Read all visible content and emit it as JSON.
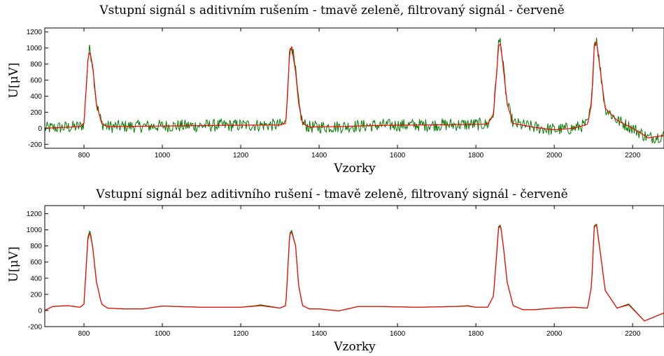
{
  "chart_data": [
    {
      "type": "line",
      "title": "Vstupní signál s aditivním rušením - tmavě zeleně, filtrovaný signál - červeně",
      "xlabel": "Vzorky",
      "ylabel": "U[μV]",
      "xlim": [
        700,
        2280
      ],
      "ylim": [
        -250,
        1250
      ],
      "xticks": [
        800,
        1000,
        1200,
        1400,
        1600,
        1800,
        2000,
        2200
      ],
      "yticks": [
        -200,
        0,
        200,
        400,
        600,
        800,
        1000,
        1200
      ],
      "grid": false,
      "series": [
        {
          "color": "#007a00",
          "noise_amplitude": 80,
          "x": [
            700,
            790,
            800,
            810,
            815,
            822,
            832,
            845,
            860,
            950,
            1050,
            1150,
            1250,
            1300,
            1315,
            1325,
            1330,
            1340,
            1348,
            1358,
            1375,
            1450,
            1550,
            1650,
            1750,
            1830,
            1845,
            1858,
            1863,
            1870,
            1880,
            1895,
            1950,
            2000,
            2050,
            2085,
            2095,
            2102,
            2108,
            2118,
            2130,
            2160,
            2200,
            2240,
            2280
          ],
          "y": [
            0,
            20,
            60,
            850,
            1000,
            800,
            300,
            60,
            20,
            25,
            30,
            35,
            40,
            40,
            60,
            980,
            1050,
            700,
            300,
            60,
            15,
            20,
            35,
            40,
            45,
            50,
            180,
            1050,
            1100,
            750,
            300,
            60,
            10,
            -20,
            0,
            50,
            300,
            1050,
            1120,
            700,
            250,
            100,
            0,
            -120,
            -90
          ]
        },
        {
          "color": "#ff0000",
          "x": [
            700,
            790,
            800,
            810,
            815,
            822,
            832,
            845,
            860,
            950,
            1050,
            1150,
            1250,
            1300,
            1315,
            1325,
            1330,
            1340,
            1348,
            1358,
            1375,
            1450,
            1550,
            1650,
            1750,
            1830,
            1845,
            1858,
            1863,
            1870,
            1880,
            1895,
            1950,
            2000,
            2050,
            2085,
            2095,
            2102,
            2108,
            2118,
            2130,
            2160,
            2200,
            2240,
            2280
          ],
          "y": [
            0,
            20,
            60,
            850,
            960,
            780,
            300,
            60,
            20,
            25,
            30,
            35,
            40,
            40,
            60,
            950,
            1020,
            700,
            300,
            60,
            15,
            20,
            35,
            40,
            45,
            50,
            180,
            1020,
            1060,
            750,
            300,
            60,
            10,
            -20,
            0,
            50,
            300,
            1020,
            1080,
            700,
            250,
            100,
            0,
            -120,
            -90
          ]
        }
      ]
    },
    {
      "type": "line",
      "title": "Vstupní signál bez aditivního rušení - tmavě zeleně, filtrovaný signál - červeně",
      "xlabel": "Vzorky",
      "ylabel": "U[μV]",
      "xlim": [
        700,
        2280
      ],
      "ylim": [
        -200,
        1300
      ],
      "xticks": [
        800,
        1000,
        1200,
        1400,
        1600,
        1800,
        2000,
        2200
      ],
      "yticks": [
        -200,
        0,
        200,
        400,
        600,
        800,
        1000,
        1200
      ],
      "grid": false,
      "series": [
        {
          "color": "#007a00",
          "x": [
            700,
            720,
            760,
            790,
            800,
            810,
            815,
            822,
            832,
            845,
            860,
            900,
            950,
            1000,
            1100,
            1200,
            1240,
            1250,
            1300,
            1315,
            1325,
            1330,
            1340,
            1348,
            1358,
            1375,
            1400,
            1450,
            1500,
            1550,
            1650,
            1750,
            1780,
            1800,
            1830,
            1845,
            1858,
            1863,
            1870,
            1880,
            1895,
            1920,
            1950,
            2000,
            2050,
            2085,
            2095,
            2102,
            2108,
            2118,
            2130,
            2160,
            2190,
            2230,
            2280
          ],
          "y": [
            0,
            50,
            60,
            40,
            80,
            900,
            1000,
            800,
            350,
            80,
            30,
            20,
            20,
            55,
            40,
            40,
            60,
            70,
            30,
            60,
            960,
            990,
            800,
            300,
            60,
            20,
            20,
            -5,
            50,
            50,
            40,
            50,
            60,
            40,
            40,
            180,
            1040,
            1060,
            800,
            350,
            60,
            10,
            10,
            30,
            40,
            30,
            300,
            1050,
            1070,
            700,
            250,
            30,
            80,
            -130,
            -30
          ]
        },
        {
          "color": "#ff0000",
          "x": [
            700,
            720,
            760,
            790,
            800,
            810,
            815,
            822,
            832,
            845,
            860,
            900,
            950,
            1000,
            1100,
            1200,
            1240,
            1250,
            1300,
            1315,
            1325,
            1330,
            1340,
            1348,
            1358,
            1375,
            1400,
            1450,
            1500,
            1550,
            1650,
            1750,
            1780,
            1800,
            1830,
            1845,
            1858,
            1863,
            1870,
            1880,
            1895,
            1920,
            1950,
            2000,
            2050,
            2085,
            2095,
            2102,
            2108,
            2118,
            2130,
            2160,
            2190,
            2230,
            2280
          ],
          "y": [
            0,
            50,
            60,
            40,
            80,
            880,
            970,
            790,
            350,
            80,
            30,
            20,
            20,
            55,
            40,
            40,
            55,
            60,
            30,
            60,
            940,
            970,
            800,
            300,
            60,
            20,
            20,
            -5,
            50,
            50,
            40,
            50,
            55,
            40,
            40,
            180,
            1020,
            1050,
            800,
            350,
            60,
            10,
            10,
            30,
            40,
            30,
            300,
            1030,
            1060,
            700,
            250,
            30,
            70,
            -130,
            -30
          ]
        }
      ]
    }
  ]
}
